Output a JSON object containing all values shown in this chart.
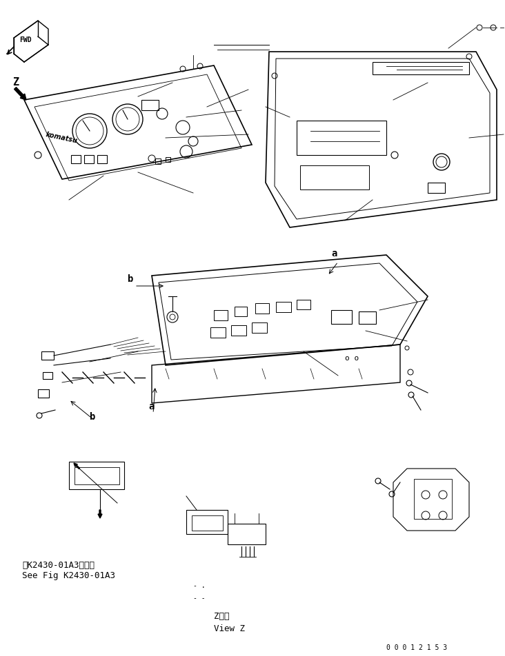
{
  "bg_color": "#ffffff",
  "line_color": "#000000",
  "fig_width": 7.32,
  "fig_height": 9.52,
  "dpi": 100,
  "bottom_left_text_line1": "第K2430-01A3図参照",
  "bottom_left_text_line2": "See Fig K2430-01A3",
  "bottom_center_text1": "Z　視",
  "bottom_center_text2": "View Z",
  "bottom_right_text": "0 0 0 1 2 1 5 3",
  "label_a1": "a",
  "label_b1": "b",
  "label_a2": "a",
  "label_b2": "b",
  "fwd_label": "FWD",
  "z_label": "Z",
  "dots1": "- .",
  "dots2": "- -",
  "font_size_main": 9,
  "font_size_small": 7,
  "font_size_labels": 10,
  "font_size_bottom_labels": 9
}
